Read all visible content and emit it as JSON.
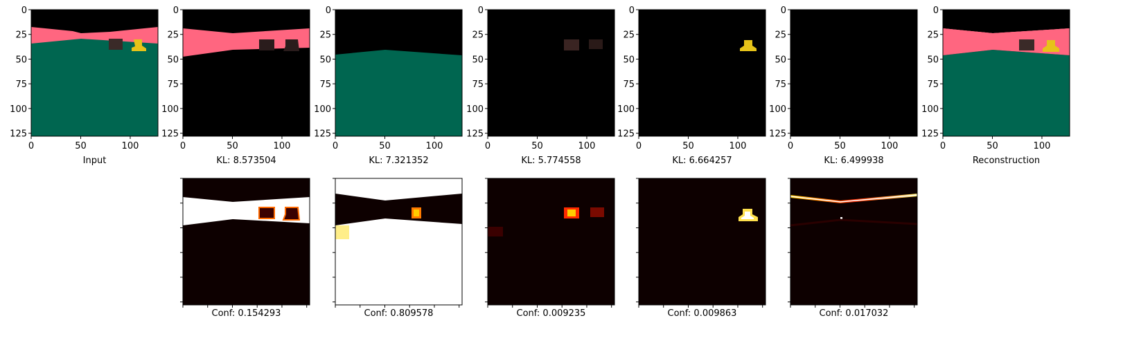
{
  "chart_data": {
    "type": "image-grid",
    "rows": 2,
    "columns": 7,
    "axis": {
      "xticks": [
        0,
        50,
        100
      ],
      "yticks": [
        0,
        25,
        50,
        75,
        100,
        125
      ],
      "xlim": [
        0,
        128
      ],
      "ylim": [
        128,
        0
      ]
    },
    "top_row": [
      {
        "caption": "Input",
        "image": "input-scene"
      },
      {
        "caption": "KL: 8.573504",
        "image": "slot-1-wall-and-objects"
      },
      {
        "caption": "KL: 7.321352",
        "image": "slot-2-floor"
      },
      {
        "caption": "KL: 5.774558",
        "image": "slot-3-faint-objects"
      },
      {
        "caption": "KL: 6.664257",
        "image": "slot-4-yellow-object"
      },
      {
        "caption": "KL: 6.499938",
        "image": "slot-5-near-empty"
      },
      {
        "caption": "Reconstruction",
        "image": "reconstruction-scene"
      }
    ],
    "bottom_row": [
      {
        "caption": "Conf: 0.154293",
        "value": 0.154293,
        "image": "mask-1"
      },
      {
        "caption": "Conf: 0.809578",
        "value": 0.809578,
        "image": "mask-2"
      },
      {
        "caption": "Conf: 0.009235",
        "value": 0.009235,
        "image": "mask-3"
      },
      {
        "caption": "Conf: 0.009863",
        "value": 0.009863,
        "image": "mask-4"
      },
      {
        "caption": "Conf: 0.017032",
        "value": 0.017032,
        "image": "mask-5"
      }
    ],
    "colors": {
      "wall": "#ff6680",
      "floor": "#006650",
      "background": "#000000",
      "yellow_object": "#e6c319",
      "dark_object": "#3a2a28",
      "heat_background": "#0d0000",
      "heat_full": "#ffffff",
      "heat_mid": "#ffcc00",
      "heat_low": "#cc1a00"
    }
  }
}
